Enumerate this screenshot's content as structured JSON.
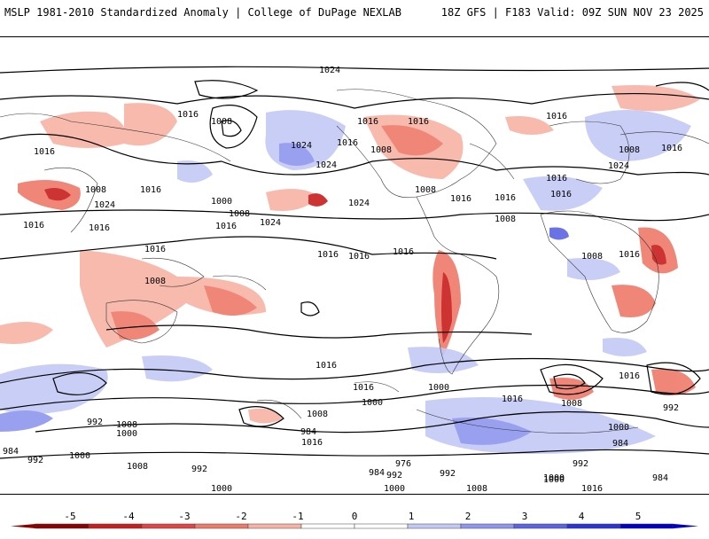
{
  "header": {
    "title": "MSLP 1981-2010 Standardized Anomaly | College of DuPage NEXLAB",
    "run_info": "18Z GFS | F183 Valid: 09Z SUN NOV 23 2025"
  },
  "colorbar": {
    "ticks": [
      "-5",
      "-4",
      "-3",
      "-2",
      "-1",
      "0",
      "1",
      "2",
      "3",
      "4",
      "5"
    ],
    "colors": [
      "#8b0000",
      "#c81e1e",
      "#e04444",
      "#ee7a6a",
      "#f7b3a5",
      "#ffffff",
      "#ffffff",
      "#c3c9f5",
      "#8e96ee",
      "#5a63e3",
      "#2a33d6",
      "#0000c8"
    ]
  },
  "map": {
    "isobar_labels": [
      "1024",
      "1016",
      "1008",
      "1016",
      "1008",
      "1016",
      "1024",
      "1016",
      "1016",
      "1016",
      "1008",
      "1000",
      "1008",
      "1016",
      "1024",
      "1016",
      "1016",
      "1016",
      "1024",
      "1024",
      "1016",
      "1024",
      "1008",
      "1016",
      "1016",
      "1008",
      "1016",
      "1016",
      "1008",
      "1016",
      "1008",
      "1008",
      "1016",
      "1016",
      "1016",
      "1016",
      "1024",
      "1016",
      "1000",
      "1016",
      "1008",
      "1000",
      "1008",
      "1000",
      "992",
      "984",
      "1016",
      "1000",
      "992",
      "984",
      "1008",
      "992",
      "976",
      "984",
      "992",
      "1000",
      "1008",
      "1000",
      "992",
      "1000",
      "984",
      "992",
      "1016",
      "1000",
      "1008",
      "1016",
      "1000",
      "992",
      "984",
      "1016"
    ]
  }
}
